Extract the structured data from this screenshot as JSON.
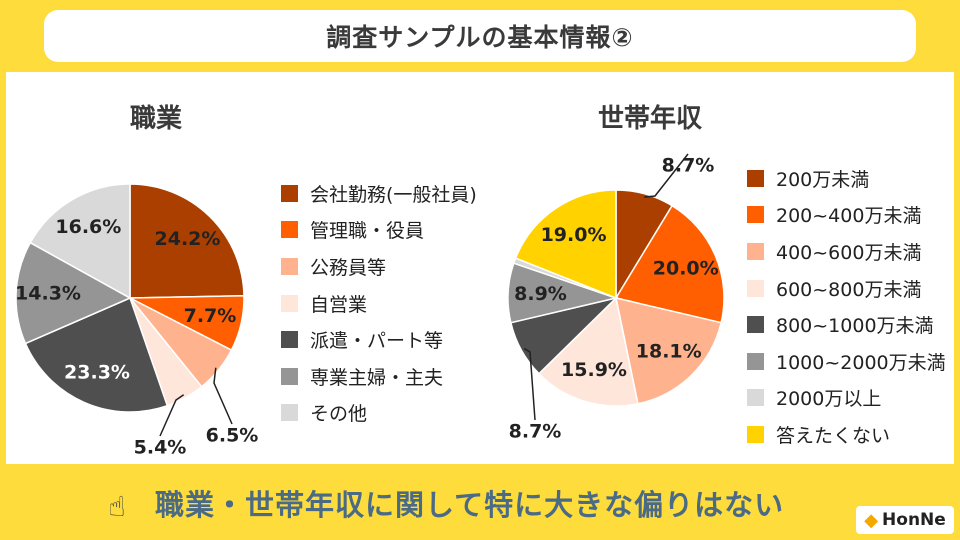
{
  "slide": {
    "title": "調査サンプルの基本情報②",
    "conclusion": "職業・世帯年収に関して特に大きな偏りはない",
    "logo_text": "HonNe",
    "footer_icon": "pointing-hand-icon"
  },
  "colors": {
    "background": "#FDDC3C",
    "footer_text": "#4a6a85"
  },
  "chart_data": [
    {
      "type": "pie",
      "title": "職業",
      "start": "12-o'clock",
      "direction": "clockwise",
      "legend_position": "right",
      "slices": [
        {
          "label": "会社勤務(一般社員)",
          "value": 24.2,
          "display": "24.2%",
          "color": "#AA3F00",
          "label_color": "#222"
        },
        {
          "label": "管理職・役員",
          "value": 7.7,
          "display": "7.7%",
          "color": "#FF5F00",
          "label_color": "#222"
        },
        {
          "label": "公務員等",
          "value": 6.5,
          "display": "6.5%",
          "color": "#FEB38E",
          "label_color": "#222"
        },
        {
          "label": "自営業",
          "value": 5.4,
          "display": "5.4%",
          "color": "#FFE6DA",
          "label_color": "#222"
        },
        {
          "label": "派遣・パート等",
          "value": 23.3,
          "display": "23.3%",
          "color": "#4F4F4F",
          "label_color": "#fff"
        },
        {
          "label": "専業主婦・主夫",
          "value": 14.3,
          "display": "14.3%",
          "color": "#959595",
          "label_color": "#222"
        },
        {
          "label": "その他",
          "value": 16.6,
          "display": "16.6%",
          "color": "#D9D9D9",
          "label_color": "#222"
        }
      ]
    },
    {
      "type": "pie",
      "title": "世帯年収",
      "start": "12-o'clock",
      "direction": "clockwise",
      "legend_position": "right",
      "slices": [
        {
          "label": "200万未満",
          "value": 8.7,
          "display": "8.7%",
          "color": "#AA3F00",
          "label_color": "#222"
        },
        {
          "label": "200~400万未満",
          "value": 20.0,
          "display": "20.0%",
          "color": "#FF5F00",
          "label_color": "#222"
        },
        {
          "label": "400~600万未満",
          "value": 18.1,
          "display": "18.1%",
          "color": "#FEB38E",
          "label_color": "#222"
        },
        {
          "label": "600~800万未満",
          "value": 15.9,
          "display": "15.9%",
          "color": "#FFE6DA",
          "label_color": "#222"
        },
        {
          "label": "800~1000万未満",
          "value": 8.7,
          "display": "8.7%",
          "color": "#4F4F4F",
          "label_color": "#222"
        },
        {
          "label": "1000~2000万未満",
          "value": 8.9,
          "display": "8.9%",
          "color": "#959595",
          "label_color": "#222"
        },
        {
          "label": "2000万以上",
          "value": 0.8,
          "display": "",
          "color": "#D9D9D9",
          "label_color": "#222"
        },
        {
          "label": "答えたくない",
          "value": 19.0,
          "display": "19.0%",
          "color": "#FFD200",
          "label_color": "#222"
        }
      ]
    }
  ]
}
